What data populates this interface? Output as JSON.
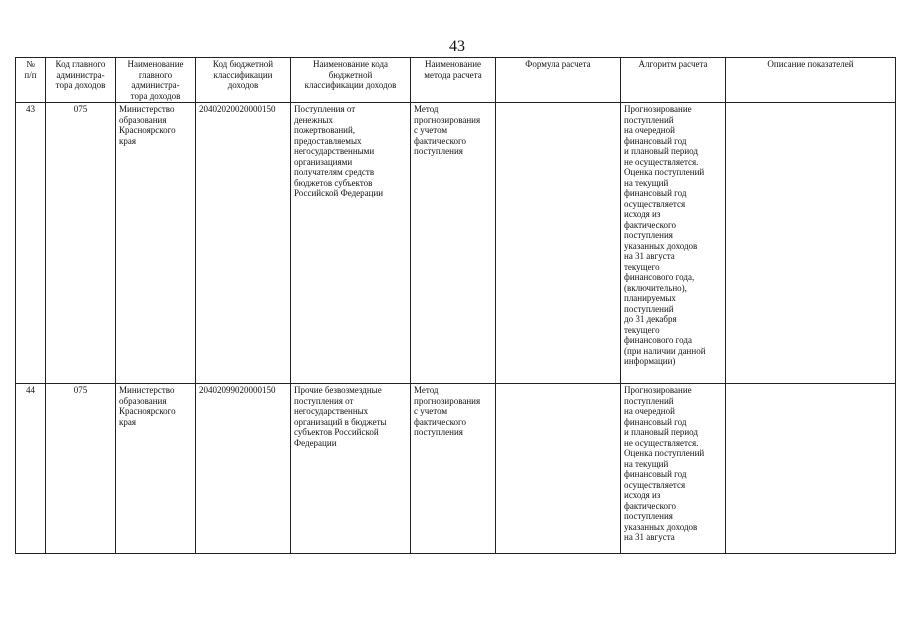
{
  "page_number": "43",
  "table": {
    "headers": [
      "№\nп/п",
      "Код главного\nадминистра-\nтора доходов",
      "Наименование\nглавного\nадминистра-\nтора доходов",
      "Код бюджетной\nклассификации\nдоходов",
      "Наименование кода\nбюджетной\nклассификации доходов",
      "Наименование\nметода расчета",
      "Формула расчета",
      "Алгоритм расчета",
      "Описание показателей"
    ],
    "rows": [
      {
        "num": "43",
        "admin_code": "075",
        "admin_name": "Министерство\nобразования\nКрасноярского\nкрая",
        "kbk": "20402020020000150",
        "kbk_name": "Поступления от\nденежных\nпожертвований,\nпредоставляемых\nнегосударственными\nорганизациями\nполучателям средств\nбюджетов субъектов\nРоссийской Федерации",
        "method": "Метод\nпрогнозирования\nс учетом\nфактического\nпоступления",
        "formula": "",
        "algorithm": "Прогнозирование\nпоступлений\nна очередной\nфинансовый год\nи плановый период\nне осуществляется.\nОценка поступлений\nна текущий\nфинансовый год\nосуществляется\nисходя из\nфактического\nпоступления\nуказанных доходов\nна 31 августа\nтекущего\nфинансового года,\n(включительно),\nпланируемых\nпоступлений\nдо 31 декабря\nтекущего\nфинансового года\n(при наличии данной\nинформации)",
        "description": ""
      },
      {
        "num": "44",
        "admin_code": "075",
        "admin_name": "Министерство\nобразования\nКрасноярского\nкрая",
        "kbk": "20402099020000150",
        "kbk_name": "Прочие безвозмездные\nпоступления от\nнегосударственных\nорганизаций в бюджеты\nсубъектов Российской\nФедерации",
        "method": "Метод\nпрогнозирования\nс учетом\nфактического\nпоступления",
        "formula": "",
        "algorithm": "Прогнозирование\nпоступлений\nна очередной\nфинансовый год\nи плановый период\nне осуществляется.\nОценка поступлений\nна текущий\nфинансовый год\nосуществляется\nисходя из\nфактического\nпоступления\nуказанных доходов\nна 31 августа",
        "description": ""
      }
    ]
  }
}
